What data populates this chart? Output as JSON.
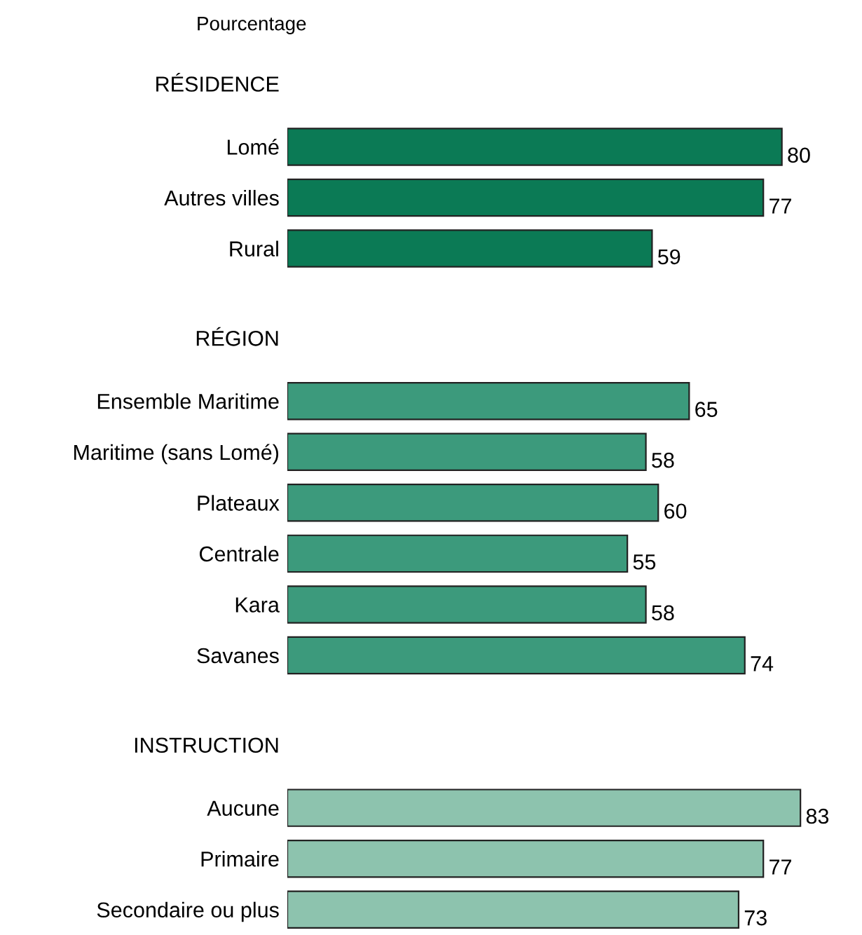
{
  "chart_data": {
    "type": "bar",
    "orientation": "horizontal",
    "data_labels": true,
    "grid": false,
    "legend": false,
    "tick_labels": "y",
    "annotations": [
      "Pourcentage"
    ],
    "categories": [
      "RÉSIDENCE",
      "Lomé",
      "Autres villes",
      "Rural",
      null,
      "RÉGION",
      "Ensemble Maritime",
      "Maritime (sans Lomé)",
      "Plateaux",
      "Centrale",
      "Kara",
      "Savanes",
      null,
      "INSTRUCTION",
      "Aucune",
      "Primaire",
      "Secondaire ou plus"
    ],
    "values": [
      null,
      80,
      77,
      59,
      null,
      null,
      65,
      58,
      60,
      55,
      58,
      74,
      null,
      null,
      83,
      77,
      73
    ],
    "colors": [
      null,
      "#0b7a55",
      "#0b7a55",
      "#0b7a55",
      null,
      null,
      "#3c9a7c",
      "#3c9a7c",
      "#3c9a7c",
      "#3c9a7c",
      "#3c9a7c",
      "#3c9a7c",
      null,
      null,
      "#8dc3ae",
      "#8dc3ae",
      "#8dc3ae"
    ]
  }
}
